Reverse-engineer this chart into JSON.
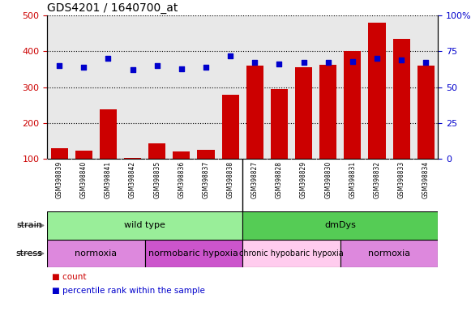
{
  "title": "GDS4201 / 1640700_at",
  "samples": [
    "GSM398839",
    "GSM398840",
    "GSM398841",
    "GSM398842",
    "GSM398835",
    "GSM398836",
    "GSM398837",
    "GSM398838",
    "GSM398827",
    "GSM398828",
    "GSM398829",
    "GSM398830",
    "GSM398831",
    "GSM398832",
    "GSM398833",
    "GSM398834"
  ],
  "counts": [
    130,
    122,
    238,
    103,
    143,
    120,
    125,
    278,
    360,
    295,
    355,
    363,
    400,
    480,
    435,
    360
  ],
  "percentile_ranks": [
    65,
    64,
    70,
    62,
    65,
    63,
    64,
    72,
    67,
    66,
    67,
    67,
    68,
    70,
    69,
    67
  ],
  "bar_color": "#cc0000",
  "dot_color": "#0000cc",
  "ylim_left": [
    100,
    500
  ],
  "ylim_right": [
    0,
    100
  ],
  "yticks_left": [
    100,
    200,
    300,
    400,
    500
  ],
  "yticks_right": [
    0,
    25,
    50,
    75,
    100
  ],
  "strain_groups": [
    {
      "label": "wild type",
      "start": 0,
      "end": 8,
      "color": "#99ee99"
    },
    {
      "label": "dmDys",
      "start": 8,
      "end": 16,
      "color": "#55cc55"
    }
  ],
  "stress_groups": [
    {
      "label": "normoxia",
      "start": 0,
      "end": 4,
      "color": "#dd88dd"
    },
    {
      "label": "normobaric hypoxia",
      "start": 4,
      "end": 8,
      "color": "#cc55cc"
    },
    {
      "label": "chronic hypobaric hypoxia",
      "start": 8,
      "end": 12,
      "color": "#ffccee"
    },
    {
      "label": "normoxia",
      "start": 12,
      "end": 16,
      "color": "#dd88dd"
    }
  ],
  "bar_color_left": "#cc0000",
  "dot_color_blue": "#0000cc",
  "tick_color_left": "#cc0000",
  "tick_color_right": "#0000cc",
  "plot_bg": "#e8e8e8",
  "fig_bg": "#ffffff"
}
